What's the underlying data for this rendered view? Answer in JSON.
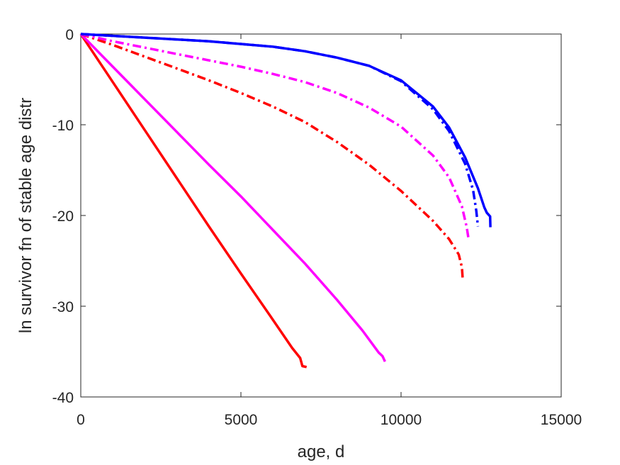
{
  "chart_data": {
    "type": "line",
    "title": "",
    "xlabel": "age, d",
    "ylabel": "ln survivor fn of stable age distr",
    "xlim": [
      0,
      15000
    ],
    "ylim": [
      -40,
      0
    ],
    "xticks": [
      0,
      5000,
      10000,
      15000
    ],
    "yticks": [
      0,
      -10,
      -20,
      -30,
      -40
    ],
    "grid": false,
    "legend": "none",
    "series": [
      {
        "color": "#ff0000",
        "style": "solid",
        "points": [
          [
            0,
            0
          ],
          [
            1000,
            -5.3
          ],
          [
            2000,
            -10.6
          ],
          [
            3000,
            -15.9
          ],
          [
            4000,
            -21.2
          ],
          [
            5000,
            -26.4
          ],
          [
            6000,
            -31.5
          ],
          [
            6600,
            -34.6
          ],
          [
            6850,
            -35.7
          ],
          [
            6920,
            -36.6
          ],
          [
            7050,
            -36.7
          ]
        ]
      },
      {
        "color": "#ff00ff",
        "style": "solid",
        "points": [
          [
            0,
            0
          ],
          [
            1000,
            -3.6
          ],
          [
            2000,
            -7.2
          ],
          [
            3000,
            -10.8
          ],
          [
            4000,
            -14.4
          ],
          [
            5000,
            -17.9
          ],
          [
            6000,
            -21.6
          ],
          [
            7000,
            -25.3
          ],
          [
            8000,
            -29.3
          ],
          [
            8800,
            -32.7
          ],
          [
            9300,
            -35.1
          ],
          [
            9420,
            -35.5
          ],
          [
            9500,
            -36.1
          ]
        ]
      },
      {
        "color": "#ff0000",
        "style": "dashdot",
        "points": [
          [
            0,
            0
          ],
          [
            1000,
            -1.2
          ],
          [
            2000,
            -2.5
          ],
          [
            3000,
            -3.8
          ],
          [
            4000,
            -5.1
          ],
          [
            5000,
            -6.5
          ],
          [
            6000,
            -8.0
          ],
          [
            7000,
            -9.7
          ],
          [
            8000,
            -11.9
          ],
          [
            9000,
            -14.4
          ],
          [
            10000,
            -17.3
          ],
          [
            11000,
            -20.6
          ],
          [
            11500,
            -22.6
          ],
          [
            11800,
            -24.3
          ],
          [
            11900,
            -25.7
          ],
          [
            11930,
            -27.2
          ]
        ]
      },
      {
        "color": "#ff00ff",
        "style": "dashdot",
        "points": [
          [
            0,
            0
          ],
          [
            1000,
            -0.8
          ],
          [
            2000,
            -1.5
          ],
          [
            3000,
            -2.2
          ],
          [
            4000,
            -2.9
          ],
          [
            5000,
            -3.6
          ],
          [
            6000,
            -4.4
          ],
          [
            7000,
            -5.3
          ],
          [
            8000,
            -6.5
          ],
          [
            9000,
            -8.1
          ],
          [
            10000,
            -10.2
          ],
          [
            11000,
            -13.4
          ],
          [
            11500,
            -15.8
          ],
          [
            11900,
            -19.0
          ],
          [
            12050,
            -21.3
          ],
          [
            12100,
            -22.4
          ]
        ]
      },
      {
        "color": "#0000ff",
        "style": "dashdot",
        "points": [
          [
            0,
            0
          ],
          [
            2000,
            -0.4
          ],
          [
            4000,
            -0.8
          ],
          [
            6000,
            -1.4
          ],
          [
            7000,
            -1.9
          ],
          [
            8000,
            -2.6
          ],
          [
            9000,
            -3.5
          ],
          [
            10000,
            -5.2
          ],
          [
            11000,
            -8.3
          ],
          [
            11500,
            -10.7
          ],
          [
            12000,
            -14.3
          ],
          [
            12250,
            -17.2
          ],
          [
            12350,
            -19.5
          ],
          [
            12400,
            -21.2
          ]
        ]
      },
      {
        "color": "#0000ff",
        "style": "solid",
        "points": [
          [
            0,
            0
          ],
          [
            2000,
            -0.4
          ],
          [
            4000,
            -0.8
          ],
          [
            6000,
            -1.4
          ],
          [
            7000,
            -1.9
          ],
          [
            8000,
            -2.6
          ],
          [
            9000,
            -3.5
          ],
          [
            10000,
            -5.1
          ],
          [
            11000,
            -8.0
          ],
          [
            11500,
            -10.3
          ],
          [
            12000,
            -13.6
          ],
          [
            12400,
            -17.0
          ],
          [
            12600,
            -19.1
          ],
          [
            12680,
            -19.7
          ],
          [
            12780,
            -20.1
          ],
          [
            12790,
            -21.3
          ]
        ]
      }
    ]
  }
}
